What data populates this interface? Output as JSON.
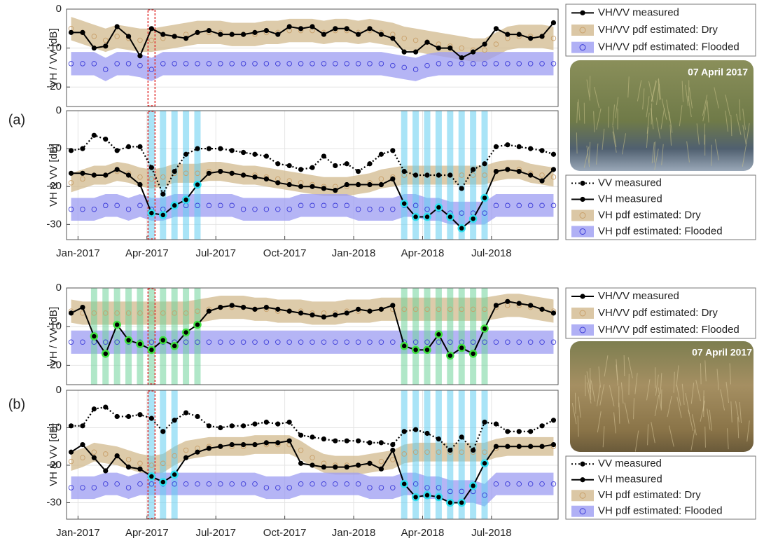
{
  "panel_labels": [
    "(a)",
    "(b)"
  ],
  "photos": [
    {
      "label": "07 April 2017"
    },
    {
      "label": "07 April 2017"
    }
  ],
  "chart_data": [
    {
      "type": "line",
      "ylabel": "VH / VV [dB]",
      "x": [
        -0.3,
        0.2,
        0.7,
        1.2,
        1.7,
        2.2,
        2.7,
        3.2,
        3.7,
        4.2,
        4.7,
        5.2,
        5.7,
        6.2,
        6.7,
        7.2,
        7.7,
        8.2,
        8.7,
        9.2,
        9.7,
        10.2,
        10.7,
        11.2,
        11.7,
        12.2,
        12.7,
        13.2,
        13.7,
        14.2,
        14.7,
        15.2,
        15.7,
        16.2,
        16.7,
        17.2,
        17.7,
        18.2,
        18.7,
        19.2,
        19.7,
        20.2,
        20.7
      ],
      "xlim": [
        -0.5,
        20.9
      ],
      "ylim": [
        -25,
        0
      ],
      "yticks": [
        0,
        -10,
        -20
      ],
      "grid": true,
      "marker": {
        "color": "#e03030",
        "x": 3.2
      },
      "series": [
        {
          "name": "VH/VV measured",
          "color": "#000000",
          "style": "solid",
          "values": [
            -6,
            -6,
            -10,
            -9.5,
            -4.5,
            -7,
            -12,
            -5,
            -6.5,
            -7,
            -7.5,
            -6,
            -5.5,
            -6.5,
            -6.5,
            -6.5,
            -6,
            -5.5,
            -6.5,
            -4.5,
            -5,
            -4.5,
            -6.5,
            -5,
            -5,
            -6.5,
            -5,
            -6.5,
            -7.5,
            -11,
            -11,
            -8.5,
            -10,
            -10,
            -12.5,
            -11,
            -9,
            -5,
            -6.5,
            -6.5,
            -7.5,
            -7,
            -3.5
          ]
        },
        {
          "name": "VH/VV pdf estimated: Dry",
          "kind": "band",
          "color": "#c9a06a",
          "band_color": "#d2b98e",
          "spread": 3,
          "values": [
            -5,
            -6,
            -7,
            -8,
            -7,
            -7.5,
            -8,
            -8,
            -7.5,
            -7,
            -6.5,
            -6,
            -6,
            -6,
            -6.5,
            -6.5,
            -6.5,
            -6,
            -6,
            -5.5,
            -5.5,
            -5.5,
            -6,
            -5.5,
            -5.5,
            -6,
            -5.5,
            -6,
            -6.5,
            -7.5,
            -8,
            -8.5,
            -9,
            -9.5,
            -10,
            -10.5,
            -10.5,
            -9,
            -7.5,
            -7,
            -7,
            -7,
            -7.5
          ]
        },
        {
          "name": "VH/VV pdf estimated: Flooded",
          "kind": "band",
          "color": "#3a3ad8",
          "band_color": "#9c9cf2",
          "spread": 3,
          "values": [
            -14,
            -14,
            -14,
            -15.5,
            -14,
            -14,
            -14.5,
            -15.5,
            -14,
            -14,
            -14,
            -14,
            -14,
            -14,
            -14,
            -14,
            -14,
            -14,
            -14,
            -14,
            -14,
            -14,
            -14,
            -14,
            -14,
            -14,
            -14,
            -14,
            -14.5,
            -15,
            -15.5,
            -14.5,
            -14,
            -14,
            -14,
            -14,
            -14,
            -14,
            -14,
            -14,
            -14,
            -14,
            -14
          ]
        }
      ]
    },
    {
      "type": "line",
      "ylabel": "VH & VV [dB]",
      "x": [
        -0.3,
        0.2,
        0.7,
        1.2,
        1.7,
        2.2,
        2.7,
        3.2,
        3.7,
        4.2,
        4.7,
        5.2,
        5.7,
        6.2,
        6.7,
        7.2,
        7.7,
        8.2,
        8.7,
        9.2,
        9.7,
        10.2,
        10.7,
        11.2,
        11.7,
        12.2,
        12.7,
        13.2,
        13.7,
        14.2,
        14.7,
        15.2,
        15.7,
        16.2,
        16.7,
        17.2,
        17.7,
        18.2,
        18.7,
        19.2,
        19.7,
        20.2,
        20.7
      ],
      "xlim": [
        -0.5,
        20.9
      ],
      "ylim": [
        -34,
        0
      ],
      "yticks": [
        0,
        -10,
        -20,
        -30
      ],
      "grid": true,
      "xticks": [
        {
          "value": 0,
          "label": "Jan-2017"
        },
        {
          "value": 3,
          "label": "Apr-2017"
        },
        {
          "value": 6,
          "label": "Jul-2017"
        },
        {
          "value": 9,
          "label": "Oct-2017"
        },
        {
          "value": 12,
          "label": "Jan-2018"
        },
        {
          "value": 15,
          "label": "Apr-2018"
        },
        {
          "value": 18,
          "label": "Jul-2018"
        }
      ],
      "marker": {
        "color": "#e03030",
        "x": 3.2
      },
      "stripes": {
        "color": "#62cdf0",
        "x": [
          3.2,
          3.7,
          4.2,
          4.7,
          5.2,
          14.2,
          14.7,
          15.2,
          15.7,
          16.2,
          16.7,
          17.2,
          17.7
        ]
      },
      "series": [
        {
          "name": "VV measured",
          "color": "#000000",
          "style": "dotted",
          "values": [
            -10.5,
            -10,
            -6.5,
            -7.5,
            -10.5,
            -9.5,
            -9.5,
            -15,
            -22,
            -16,
            -11.5,
            -10,
            -10,
            -10,
            -10.5,
            -11,
            -11.5,
            -12,
            -14,
            -14.5,
            -15.5,
            -15,
            -12,
            -14.5,
            -14,
            -16,
            -14,
            -11.5,
            -10.5,
            -16,
            -17,
            -17,
            -17,
            -17,
            -20.5,
            -15.5,
            -14,
            -9.5,
            -9,
            -9.5,
            -10,
            -10.5,
            -11.5
          ]
        },
        {
          "name": "VH measured",
          "color": "#000000",
          "style": "solid",
          "highlight_color": "#2fe0f0",
          "values": [
            -16.5,
            -16.5,
            -17,
            -17,
            -15.5,
            -17,
            -19.5,
            -27,
            -27.5,
            -25,
            -23.5,
            -19.5,
            -16.5,
            -16,
            -16.5,
            -17,
            -17.5,
            -18,
            -19,
            -19.5,
            -20,
            -20,
            -20.5,
            -21,
            -19.5,
            -19.5,
            -19.5,
            -19.5,
            -18,
            -24.5,
            -28,
            -28,
            -25.5,
            -28,
            -31,
            -28.5,
            -23,
            -16,
            -15.5,
            -16,
            -17,
            -18.5,
            -15.5
          ]
        },
        {
          "name": "VH pdf estimated: Dry",
          "kind": "band",
          "color": "#c9a06a",
          "band_color": "#d2b98e",
          "spread": 2.5,
          "values": [
            -19,
            -18,
            -17,
            -17,
            -16,
            -16.5,
            -17.5,
            -18,
            -17.5,
            -16.5,
            -16.5,
            -16.5,
            -16,
            -16,
            -16.5,
            -17,
            -17,
            -17.5,
            -18,
            -18.5,
            -19,
            -19.5,
            -20,
            -20,
            -20,
            -19.5,
            -19,
            -18,
            -17.5,
            -17,
            -17,
            -17,
            -17,
            -17,
            -17,
            -17,
            -17,
            -16,
            -15.5,
            -15.5,
            -16.5,
            -17,
            -17.5
          ]
        },
        {
          "name": "VH pdf estimated: Flooded",
          "kind": "band",
          "color": "#3a3ad8",
          "band_color": "#9c9cf2",
          "spread": 3,
          "values": [
            -26,
            -26,
            -26,
            -25,
            -25,
            -26,
            -25,
            -26,
            -26,
            -25,
            -25,
            -25,
            -25,
            -25,
            -25,
            -26,
            -26,
            -26,
            -26,
            -26,
            -25,
            -25,
            -25,
            -25,
            -25,
            -26,
            -26,
            -26,
            -26,
            -25,
            -25,
            -26,
            -26,
            -27,
            -27,
            -27,
            -27,
            -25,
            -25,
            -25,
            -25,
            -25,
            -25
          ]
        }
      ]
    },
    {
      "type": "line",
      "ylabel": "VH / VV [dB]",
      "x": [
        -0.3,
        0.2,
        0.7,
        1.2,
        1.7,
        2.2,
        2.7,
        3.2,
        3.7,
        4.2,
        4.7,
        5.2,
        5.7,
        6.2,
        6.7,
        7.2,
        7.7,
        8.2,
        8.7,
        9.2,
        9.7,
        10.2,
        10.7,
        11.2,
        11.7,
        12.2,
        12.7,
        13.2,
        13.7,
        14.2,
        14.7,
        15.2,
        15.7,
        16.2,
        16.7,
        17.2,
        17.7,
        18.2,
        18.7,
        19.2,
        19.7,
        20.2,
        20.7
      ],
      "xlim": [
        -0.5,
        20.9
      ],
      "ylim": [
        -25,
        0
      ],
      "yticks": [
        0,
        -10,
        -20
      ],
      "grid": true,
      "marker": {
        "color": "#e03030",
        "x": 3.2
      },
      "stripes": {
        "color": "#6fd49a",
        "x": [
          0.7,
          1.2,
          1.7,
          2.2,
          2.7,
          3.2,
          3.7,
          4.2,
          4.7,
          5.2,
          14.2,
          14.7,
          15.2,
          15.7,
          16.2,
          16.7,
          17.2,
          17.7
        ]
      },
      "series": [
        {
          "name": "VH/VV measured",
          "color": "#000000",
          "style": "solid",
          "highlight_color": "#3ee040",
          "values": [
            -6.5,
            -5,
            -12.5,
            -17,
            -9.5,
            -13.5,
            -14.5,
            -16,
            -13.5,
            -15,
            -11.5,
            -9.5,
            -6,
            -5,
            -4.5,
            -5,
            -5.5,
            -5,
            -5.5,
            -6,
            -6.5,
            -7,
            -7.5,
            -7,
            -6.5,
            -5.5,
            -6,
            -5.5,
            -4.5,
            -15,
            -16,
            -16,
            -12,
            -17.5,
            -15.5,
            -17,
            -10.5,
            -4.5,
            -3.5,
            -4,
            -4.5,
            -5.5,
            -6.5
          ]
        },
        {
          "name": "VH/VV pdf estimated: Dry",
          "kind": "band",
          "color": "#c9a06a",
          "band_color": "#d2b98e",
          "spread": 3,
          "values": [
            -6,
            -6.5,
            -6.5,
            -6.5,
            -6.5,
            -6.5,
            -6.5,
            -6.5,
            -6.5,
            -6.5,
            -6.5,
            -6,
            -5.5,
            -5,
            -5,
            -5,
            -5.5,
            -5.5,
            -6,
            -6,
            -6,
            -6.5,
            -6.5,
            -6.5,
            -6,
            -6,
            -6,
            -5.5,
            -5.5,
            -5.5,
            -5.5,
            -5.5,
            -5.5,
            -5.5,
            -5.5,
            -5.5,
            -5.5,
            -5,
            -4.5,
            -4.5,
            -5,
            -5.5,
            -6
          ]
        },
        {
          "name": "VH/VV pdf estimated: Flooded",
          "kind": "band",
          "color": "#3a3ad8",
          "band_color": "#9c9cf2",
          "spread": 3,
          "values": [
            -14,
            -14,
            -14,
            -14,
            -14,
            -14,
            -14,
            -14,
            -14,
            -14,
            -14,
            -14,
            -14,
            -14,
            -14,
            -14,
            -14,
            -14,
            -14,
            -14,
            -14,
            -14,
            -14,
            -14,
            -14,
            -14,
            -14,
            -14,
            -14,
            -14,
            -14,
            -14,
            -14,
            -14,
            -14,
            -14,
            -14,
            -14,
            -14,
            -14,
            -14,
            -14,
            -14
          ]
        }
      ]
    },
    {
      "type": "line",
      "ylabel": "VH & VV [dB]",
      "x": [
        -0.3,
        0.2,
        0.7,
        1.2,
        1.7,
        2.2,
        2.7,
        3.2,
        3.7,
        4.2,
        4.7,
        5.2,
        5.7,
        6.2,
        6.7,
        7.2,
        7.7,
        8.2,
        8.7,
        9.2,
        9.7,
        10.2,
        10.7,
        11.2,
        11.7,
        12.2,
        12.7,
        13.2,
        13.7,
        14.2,
        14.7,
        15.2,
        15.7,
        16.2,
        16.7,
        17.2,
        17.7,
        18.2,
        18.7,
        19.2,
        19.7,
        20.2,
        20.7
      ],
      "xlim": [
        -0.5,
        20.9
      ],
      "ylim": [
        -34.4,
        0
      ],
      "yticks": [
        0,
        -10,
        -20,
        -30
      ],
      "grid": true,
      "xticks": [
        {
          "value": 0,
          "label": "Jan-2017"
        },
        {
          "value": 3,
          "label": "Apr-2017"
        },
        {
          "value": 6,
          "label": "Jul-2017"
        },
        {
          "value": 9,
          "label": "Oct-2017"
        },
        {
          "value": 12,
          "label": "Jan-2018"
        },
        {
          "value": 15,
          "label": "Apr-2018"
        },
        {
          "value": 18,
          "label": "Jul-2018"
        }
      ],
      "marker": {
        "color": "#e03030",
        "x": 3.2
      },
      "stripes": {
        "color": "#62cdf0",
        "x": [
          3.2,
          3.7,
          4.2,
          14.2,
          14.7,
          15.2,
          15.7,
          16.2,
          16.7,
          17.2,
          17.7
        ]
      },
      "series": [
        {
          "name": "VV measured",
          "color": "#000000",
          "style": "dotted",
          "values": [
            -9.5,
            -9.5,
            -5,
            -4.5,
            -7,
            -7,
            -6.5,
            -7.5,
            -11,
            -8,
            -6,
            -7,
            -9.5,
            -10,
            -9.5,
            -9.5,
            -9,
            -8.5,
            -9,
            -8.5,
            -12,
            -12.5,
            -13,
            -13.5,
            -13.5,
            -13.5,
            -14,
            -14,
            -14.5,
            -11,
            -10.5,
            -11.5,
            -13,
            -16,
            -12.5,
            -16,
            -8.5,
            -9,
            -11,
            -11,
            -11,
            -9.5,
            -8
          ]
        },
        {
          "name": "VH measured",
          "color": "#000000",
          "style": "solid",
          "highlight_color": "#2fe0f0",
          "values": [
            -16.5,
            -14.5,
            -18,
            -21.5,
            -17.5,
            -20.5,
            -21,
            -23,
            -24.5,
            -22.5,
            -18,
            -16.5,
            -15.5,
            -15,
            -14.5,
            -14.5,
            -14.5,
            -14,
            -14,
            -13.5,
            -19.5,
            -20,
            -20.5,
            -20.5,
            -20.5,
            -20,
            -19.5,
            -21,
            -16,
            -25,
            -28.5,
            -28,
            -28.5,
            -30,
            -30,
            -25.5,
            -19.5,
            -15,
            -15,
            -15,
            -15,
            -15,
            -14.5
          ]
        },
        {
          "name": "VH pdf estimated: Dry",
          "kind": "band",
          "color": "#c9a06a",
          "band_color": "#d2b98e",
          "spread": 2.5,
          "values": [
            -19,
            -18,
            -16.5,
            -17,
            -17.5,
            -18.5,
            -19.5,
            -20,
            -19.5,
            -17.5,
            -16,
            -15.5,
            -15,
            -15,
            -15,
            -15,
            -14.5,
            -14.5,
            -14.5,
            -14.5,
            -16,
            -18,
            -19.5,
            -20,
            -20,
            -20,
            -19.5,
            -19,
            -18.5,
            -17,
            -16.5,
            -16.5,
            -16.5,
            -16.5,
            -16.5,
            -16.5,
            -16.5,
            -15.5,
            -15,
            -15,
            -15,
            -15,
            -15
          ]
        },
        {
          "name": "VH pdf estimated: Flooded",
          "kind": "band",
          "color": "#3a3ad8",
          "band_color": "#9c9cf2",
          "spread": 3,
          "values": [
            -26,
            -26,
            -26,
            -25,
            -25,
            -26,
            -25,
            -25,
            -25,
            -25,
            -25,
            -25,
            -25,
            -25,
            -25,
            -25,
            -25,
            -26,
            -26,
            -26,
            -25,
            -25,
            -25,
            -25,
            -25,
            -25,
            -26,
            -26,
            -26,
            -25,
            -25,
            -26,
            -26,
            -27,
            -27,
            -27,
            -28,
            -25,
            -25,
            -25,
            -25,
            -25,
            -25
          ]
        }
      ]
    }
  ]
}
